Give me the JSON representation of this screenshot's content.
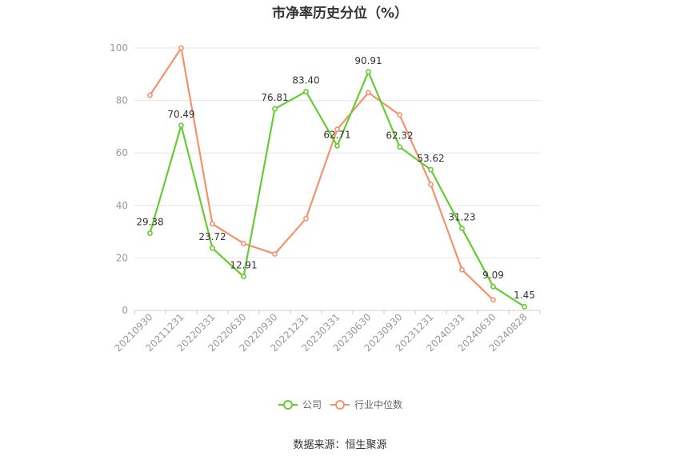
{
  "chart_data": {
    "type": "line",
    "title": "市净率历史分位（%）",
    "categories": [
      "20210930",
      "20211231",
      "20220331",
      "20220630",
      "20220930",
      "20221231",
      "20230331",
      "20230630",
      "20230930",
      "20231231",
      "20240331",
      "20240630",
      "20240828"
    ],
    "series": [
      {
        "name": "公司",
        "color": "#66cc33",
        "values": [
          29.38,
          70.49,
          23.72,
          12.91,
          76.81,
          83.4,
          62.71,
          90.91,
          62.32,
          53.62,
          31.23,
          9.09,
          1.45
        ],
        "labels": [
          "29.38",
          "70.49",
          "23.72",
          "12.91",
          "76.81",
          "83.40",
          "62.71",
          "90.91",
          "62.32",
          "53.62",
          "31.23",
          "9.09",
          "1.45"
        ]
      },
      {
        "name": "行业中位数",
        "color": "#f5926b",
        "values": [
          82,
          100,
          33,
          25.5,
          21.5,
          35,
          69,
          83,
          74.5,
          48,
          15.5,
          4,
          null
        ]
      }
    ],
    "ylim": [
      0,
      100
    ],
    "yticks": [
      "0",
      "20",
      "40",
      "60",
      "80",
      "100"
    ],
    "grid": true,
    "legend": "bottom"
  },
  "footer": {
    "source": "数据来源：恒生聚源"
  }
}
